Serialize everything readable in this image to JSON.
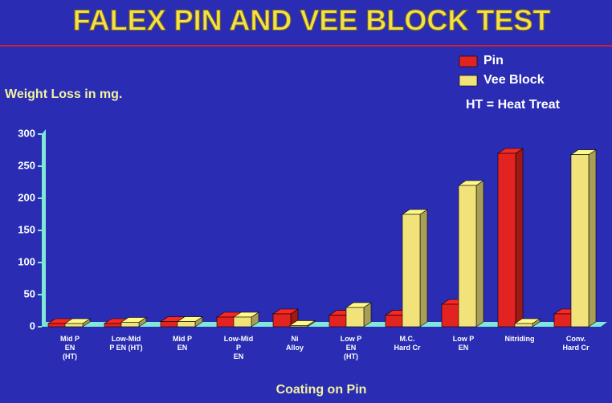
{
  "chart_data": {
    "type": "bar3d",
    "title": "FALEX PIN AND VEE BLOCK TEST",
    "y_label": "Weight Loss in mg.",
    "x_label": "Coating on Pin",
    "annotation": "HT = Heat Treat",
    "categories": [
      [
        "Mid P",
        "EN",
        "(HT)"
      ],
      [
        "Low-Mid",
        "P EN (HT)"
      ],
      [
        "Mid P",
        "EN"
      ],
      [
        "Low-Mid",
        "P",
        "EN"
      ],
      [
        "Ni",
        "Alloy"
      ],
      [
        "Low P",
        "EN",
        "(HT)"
      ],
      [
        "M.C.",
        "Hard Cr"
      ],
      [
        "Low P",
        "EN"
      ],
      [
        "Nitriding"
      ],
      [
        "Conv.",
        "Hard Cr"
      ]
    ],
    "series": [
      {
        "name": "Pin",
        "color": "#e3231f",
        "values": [
          5,
          5,
          8,
          15,
          20,
          18,
          18,
          35,
          270,
          20
        ]
      },
      {
        "name": "Vee Block",
        "color": "#f2e27a",
        "values": [
          5,
          7,
          8,
          15,
          2,
          30,
          175,
          220,
          5,
          268
        ]
      }
    ],
    "ylim": [
      0,
      300
    ],
    "yticks": [
      0,
      50,
      100,
      150,
      200,
      250,
      300
    ],
    "legend": "top-right"
  }
}
